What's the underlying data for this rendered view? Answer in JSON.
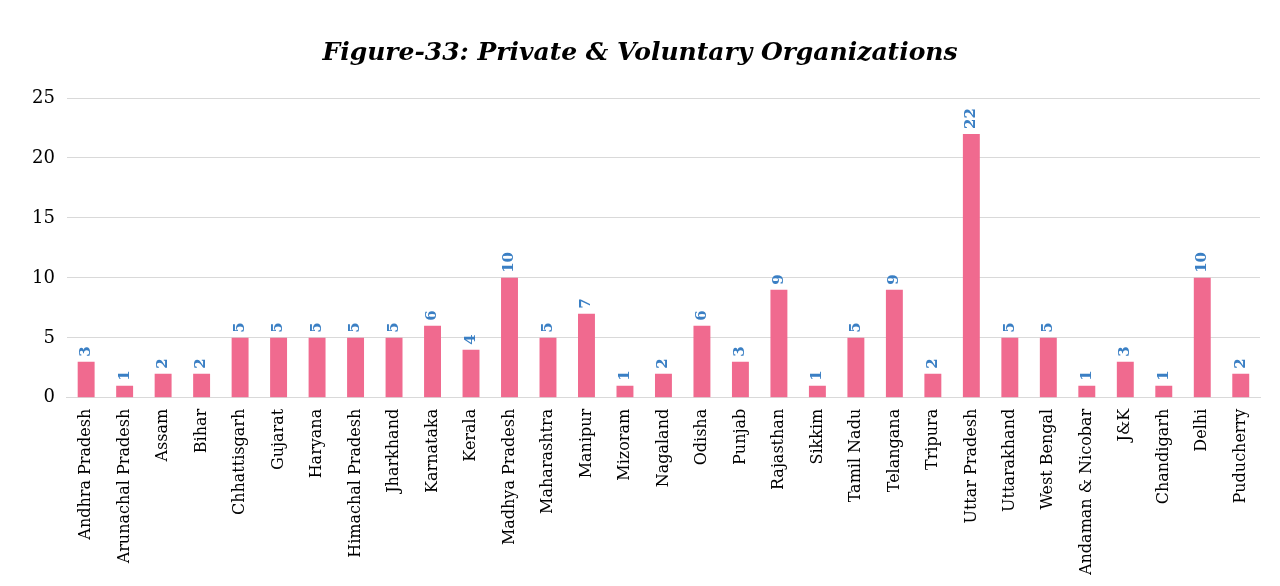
{
  "chart_data": {
    "type": "bar",
    "title": "Figure-33: Private & Voluntary Organizations",
    "categories": [
      "Andhra Pradesh",
      "Arunachal Pradesh",
      "Assam",
      "Bihar",
      "Chhattisgarh",
      "Gujarat",
      "Haryana",
      "Himachal Pradesh",
      "Jharkhand",
      "Karnataka",
      "Kerala",
      "Madhya Pradesh",
      "Maharashtra",
      "Manipur",
      "Mizoram",
      "Nagaland",
      "Odisha",
      "Punjab",
      "Rajasthan",
      "Sikkim",
      "Tamil Nadu",
      "Telangana",
      "Tripura",
      "Uttar Pradesh",
      "Uttarakhand",
      "West Bengal",
      "Andaman & Nicobar",
      "J&K",
      "Chandigarh",
      "Delhi",
      "Puducherry"
    ],
    "values": [
      3,
      1,
      2,
      2,
      5,
      5,
      5,
      5,
      5,
      6,
      4,
      10,
      5,
      7,
      1,
      2,
      6,
      3,
      9,
      1,
      5,
      9,
      2,
      22,
      5,
      5,
      1,
      3,
      1,
      10,
      2
    ],
    "color": "#f06a8f",
    "ylim": [
      0,
      25
    ],
    "yticks": [
      0,
      5,
      10,
      15,
      20,
      25
    ],
    "grid": "y",
    "legend": false,
    "data_labels": true
  }
}
